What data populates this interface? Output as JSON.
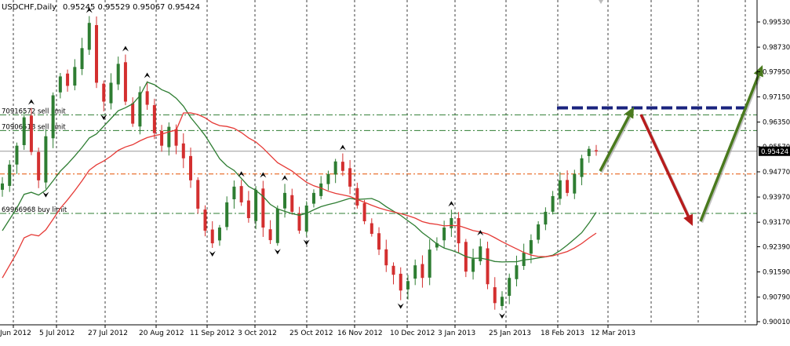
{
  "header": {
    "symbol": "USDCHF,Daily",
    "ohlc": "0.95245 0.95529 0.95067 0.95424"
  },
  "colors": {
    "bull": "#2e7d32",
    "bear": "#d32f2f",
    "ma_green": "#2e7d32",
    "ma_red": "#e53935",
    "arrow_green": "#4a7a1e",
    "arrow_red": "#b71c1c",
    "dash_blue": "#1a237e"
  },
  "order_lines": [
    {
      "label": "70916572 sell limit",
      "price": 0.9658
    },
    {
      "label": "70906518 sell limit",
      "price": 0.9608
    },
    {
      "label": "69966968 buy limit",
      "price": 0.9345
    }
  ],
  "current_price_label": "0.95424",
  "resistance_price": 0.968,
  "chart_data": {
    "type": "candlestick",
    "title": "USDCHF,Daily",
    "x_tick_labels": [
      "Jun 2012",
      "5 Jul 2012",
      "27 Jul 2012",
      "20 Aug 2012",
      "11 Sep 2012",
      "3 Oct 2012",
      "25 Oct 2012",
      "16 Nov 2012",
      "10 Dec 2012",
      "3 Jan 2013",
      "25 Jan 2013",
      "18 Feb 2013",
      "12 Mar 2013"
    ],
    "y_tick_labels": [
      "0.99530",
      "0.98730",
      "0.97950",
      "0.97150",
      "0.96350",
      "0.95570",
      "0.94770",
      "0.93970",
      "0.93170",
      "0.92390",
      "0.91590",
      "0.90790",
      "0.90010"
    ],
    "ylim": [
      0.8995,
      1.0
    ],
    "close_path": [
      0.944,
      0.95,
      0.956,
      0.965,
      0.954,
      0.945,
      0.959,
      0.972,
      0.978,
      0.975,
      0.981,
      0.987,
      0.995,
      0.976,
      0.97,
      0.976,
      0.982,
      0.97,
      0.963,
      0.973,
      0.969,
      0.96,
      0.956,
      0.962,
      0.956,
      0.952,
      0.945,
      0.936,
      0.929,
      0.925,
      0.93,
      0.938,
      0.943,
      0.938,
      0.933,
      0.942,
      0.93,
      0.926,
      0.936,
      0.941,
      0.935,
      0.929,
      0.937,
      0.941,
      0.944,
      0.947,
      0.951,
      0.948,
      0.943,
      0.937,
      0.932,
      0.928,
      0.923,
      0.918,
      0.915,
      0.91,
      0.913,
      0.918,
      0.914,
      0.923,
      0.925,
      0.93,
      0.933,
      0.925,
      0.916,
      0.92,
      0.924,
      0.912,
      0.906,
      0.908,
      0.914,
      0.918,
      0.922,
      0.926,
      0.931,
      0.935,
      0.94,
      0.945,
      0.941,
      0.947,
      0.952,
      0.955,
      0.9542
    ]
  },
  "forecast_arrows": [
    {
      "direction": "up"
    },
    {
      "direction": "down"
    },
    {
      "direction": "up"
    }
  ]
}
